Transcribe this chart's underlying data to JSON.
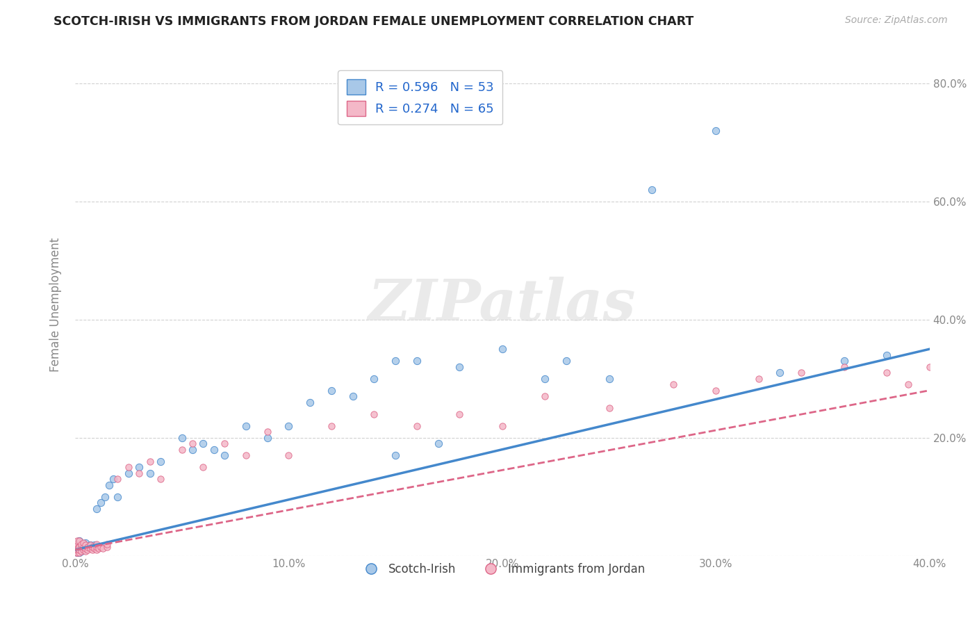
{
  "title": "SCOTCH-IRISH VS IMMIGRANTS FROM JORDAN FEMALE UNEMPLOYMENT CORRELATION CHART",
  "source": "Source: ZipAtlas.com",
  "ylabel": "Female Unemployment",
  "xlim": [
    0,
    0.4
  ],
  "ylim": [
    0,
    0.85
  ],
  "xticks": [
    0.0,
    0.1,
    0.2,
    0.3,
    0.4
  ],
  "xtick_labels": [
    "0.0%",
    "10.0%",
    "20.0%",
    "30.0%",
    "40.0%"
  ],
  "yticks": [
    0.0,
    0.2,
    0.4,
    0.6,
    0.8
  ],
  "ytick_labels": [
    "",
    "20.0%",
    "40.0%",
    "60.0%",
    "80.0%"
  ],
  "legend_labels": [
    "Scotch-Irish",
    "Immigrants from Jordan"
  ],
  "R_blue": 0.596,
  "N_blue": 53,
  "R_pink": 0.274,
  "N_pink": 65,
  "blue_color": "#a8c8e8",
  "pink_color": "#f4b8c8",
  "blue_line_color": "#4488cc",
  "pink_line_color": "#dd6688",
  "background_color": "#ffffff",
  "watermark": "ZIPatlas",
  "scotch_irish_x": [
    0.001,
    0.001,
    0.001,
    0.002,
    0.002,
    0.002,
    0.003,
    0.003,
    0.003,
    0.004,
    0.004,
    0.005,
    0.005,
    0.006,
    0.007,
    0.008,
    0.009,
    0.01,
    0.012,
    0.014,
    0.016,
    0.018,
    0.02,
    0.025,
    0.03,
    0.035,
    0.04,
    0.05,
    0.055,
    0.06,
    0.065,
    0.07,
    0.08,
    0.09,
    0.1,
    0.11,
    0.12,
    0.13,
    0.14,
    0.15,
    0.16,
    0.17,
    0.18,
    0.2,
    0.22,
    0.23,
    0.25,
    0.27,
    0.3,
    0.15,
    0.33,
    0.36,
    0.38
  ],
  "scotch_irish_y": [
    0.005,
    0.01,
    0.02,
    0.005,
    0.015,
    0.025,
    0.008,
    0.012,
    0.018,
    0.01,
    0.02,
    0.012,
    0.022,
    0.015,
    0.018,
    0.015,
    0.018,
    0.08,
    0.09,
    0.1,
    0.12,
    0.13,
    0.1,
    0.14,
    0.15,
    0.14,
    0.16,
    0.2,
    0.18,
    0.19,
    0.18,
    0.17,
    0.22,
    0.2,
    0.22,
    0.26,
    0.28,
    0.27,
    0.3,
    0.17,
    0.33,
    0.19,
    0.32,
    0.35,
    0.3,
    0.33,
    0.3,
    0.62,
    0.72,
    0.33,
    0.31,
    0.33,
    0.34
  ],
  "jordan_x": [
    0.0005,
    0.0005,
    0.0005,
    0.001,
    0.001,
    0.001,
    0.001,
    0.001,
    0.0015,
    0.0015,
    0.002,
    0.002,
    0.002,
    0.002,
    0.003,
    0.003,
    0.003,
    0.004,
    0.004,
    0.004,
    0.005,
    0.005,
    0.005,
    0.006,
    0.006,
    0.007,
    0.007,
    0.008,
    0.008,
    0.009,
    0.01,
    0.01,
    0.01,
    0.011,
    0.012,
    0.013,
    0.015,
    0.015,
    0.02,
    0.025,
    0.03,
    0.035,
    0.04,
    0.05,
    0.055,
    0.06,
    0.07,
    0.08,
    0.09,
    0.1,
    0.12,
    0.14,
    0.16,
    0.18,
    0.2,
    0.22,
    0.25,
    0.28,
    0.3,
    0.32,
    0.34,
    0.36,
    0.38,
    0.39,
    0.4
  ],
  "jordan_y": [
    0.005,
    0.01,
    0.02,
    0.005,
    0.01,
    0.015,
    0.02,
    0.025,
    0.01,
    0.015,
    0.005,
    0.01,
    0.015,
    0.025,
    0.008,
    0.015,
    0.02,
    0.01,
    0.015,
    0.022,
    0.008,
    0.012,
    0.018,
    0.01,
    0.015,
    0.012,
    0.018,
    0.01,
    0.015,
    0.012,
    0.01,
    0.015,
    0.02,
    0.012,
    0.015,
    0.012,
    0.015,
    0.02,
    0.13,
    0.15,
    0.14,
    0.16,
    0.13,
    0.18,
    0.19,
    0.15,
    0.19,
    0.17,
    0.21,
    0.17,
    0.22,
    0.24,
    0.22,
    0.24,
    0.22,
    0.27,
    0.25,
    0.29,
    0.28,
    0.3,
    0.31,
    0.32,
    0.31,
    0.29,
    0.32
  ]
}
